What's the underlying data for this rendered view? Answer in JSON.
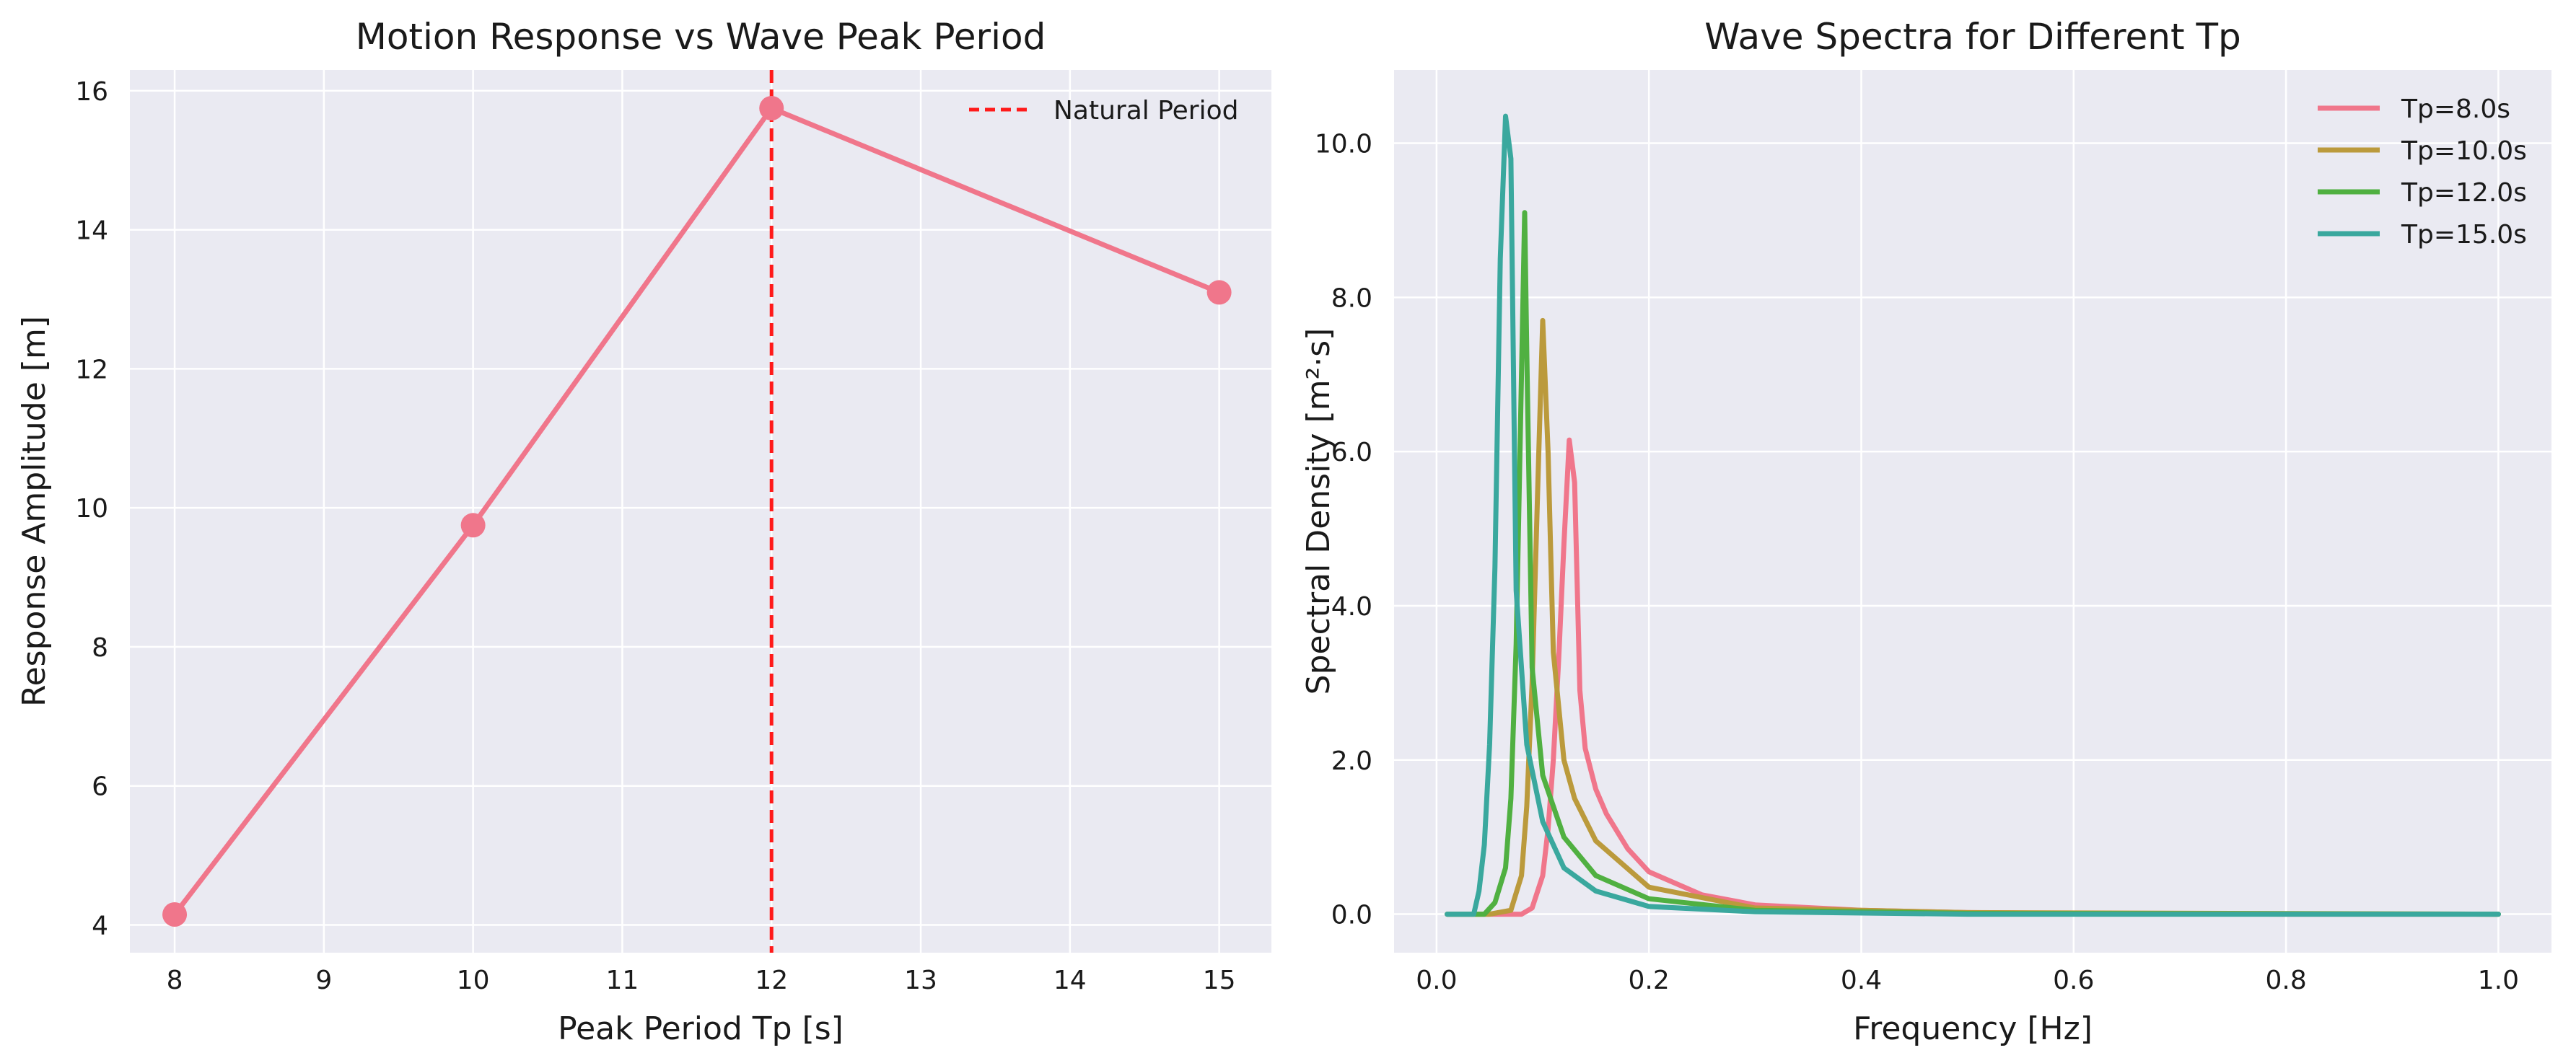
{
  "chart_data": [
    {
      "type": "line",
      "title": "Motion Response vs Wave Peak Period",
      "xlabel": "Peak Period Tp [s]",
      "ylabel": "Response Amplitude [m]",
      "xlim": [
        7.7,
        15.35
      ],
      "ylim": [
        3.6,
        16.3
      ],
      "xticks": [
        8,
        9,
        10,
        11,
        12,
        13,
        14,
        15
      ],
      "yticks": [
        4,
        6,
        8,
        10,
        12,
        14,
        16
      ],
      "grid": true,
      "legend_position": "top-right",
      "series": [
        {
          "name": "",
          "x": [
            8,
            10,
            12,
            15
          ],
          "y": [
            4.15,
            9.75,
            15.75,
            13.1
          ],
          "color": "#f0768b",
          "markers": true
        }
      ],
      "vline": {
        "name": "Natural Period",
        "x": 12,
        "color": "#ff1a1a",
        "style": "dashed"
      }
    },
    {
      "type": "line",
      "title": "Wave Spectra for Different Tp",
      "xlabel": "Frequency [Hz]",
      "ylabel": "Spectral Density [m²·s]",
      "xlim": [
        -0.04,
        1.05
      ],
      "ylim": [
        -0.5,
        10.95
      ],
      "xticks": [
        0.0,
        0.2,
        0.4,
        0.6,
        0.8,
        1.0
      ],
      "yticks": [
        0,
        2,
        4,
        6,
        8,
        10
      ],
      "grid": true,
      "legend_position": "top-right",
      "series": [
        {
          "name": "Tp=8.0s",
          "color": "#f0768b",
          "x": [
            0.01,
            0.06,
            0.08,
            0.09,
            0.1,
            0.105,
            0.11,
            0.115,
            0.12,
            0.125,
            0.13,
            0.135,
            0.14,
            0.15,
            0.16,
            0.18,
            0.2,
            0.25,
            0.3,
            0.4,
            0.5,
            0.6,
            0.8,
            1.0
          ],
          "y": [
            0,
            0,
            0,
            0.08,
            0.5,
            1.1,
            2.0,
            3.3,
            4.8,
            6.15,
            5.6,
            2.9,
            2.15,
            1.62,
            1.3,
            0.85,
            0.55,
            0.25,
            0.12,
            0.05,
            0.02,
            0.01,
            0.0,
            0.0
          ]
        },
        {
          "name": "Tp=10.0s",
          "color": "#bb9a3c",
          "x": [
            0.01,
            0.05,
            0.07,
            0.08,
            0.085,
            0.09,
            0.095,
            0.1,
            0.105,
            0.11,
            0.12,
            0.13,
            0.15,
            0.2,
            0.3,
            0.5,
            1.0
          ],
          "y": [
            0,
            0,
            0.05,
            0.5,
            1.4,
            3.0,
            5.4,
            7.7,
            6.0,
            3.4,
            2.0,
            1.5,
            0.95,
            0.35,
            0.08,
            0.02,
            0.0
          ]
        },
        {
          "name": "Tp=12.0s",
          "color": "#50b041",
          "x": [
            0.01,
            0.045,
            0.055,
            0.065,
            0.07,
            0.075,
            0.08,
            0.083,
            0.085,
            0.09,
            0.1,
            0.12,
            0.15,
            0.2,
            0.3,
            0.5,
            1.0
          ],
          "y": [
            0,
            0,
            0.15,
            0.6,
            1.5,
            3.5,
            7.0,
            9.1,
            7.3,
            3.2,
            1.8,
            1.0,
            0.5,
            0.2,
            0.05,
            0.01,
            0.0
          ]
        },
        {
          "name": "Tp=15.0s",
          "color": "#3aa89e",
          "x": [
            0.01,
            0.035,
            0.04,
            0.045,
            0.05,
            0.055,
            0.06,
            0.065,
            0.07,
            0.075,
            0.085,
            0.1,
            0.12,
            0.15,
            0.2,
            0.3,
            0.5,
            1.0
          ],
          "y": [
            0,
            0,
            0.3,
            0.9,
            2.2,
            4.5,
            8.5,
            10.35,
            9.8,
            4.2,
            2.2,
            1.2,
            0.6,
            0.3,
            0.1,
            0.03,
            0.0,
            0.0
          ]
        }
      ]
    }
  ]
}
